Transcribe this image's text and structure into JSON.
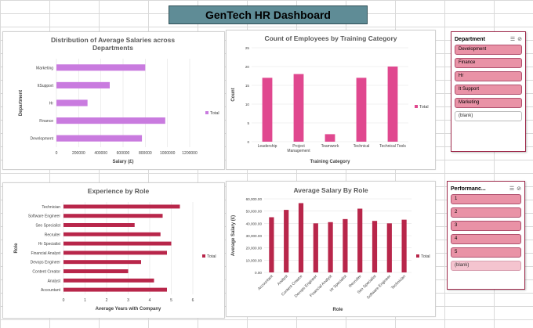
{
  "dashboard": {
    "title": "GenTech HR Dashboard"
  },
  "charts": [
    {
      "id": "dept_salary",
      "title": "Distribution of Average Salaries across Departments",
      "color": "#c97bdf"
    },
    {
      "id": "training",
      "title": "Count of Employees by Training Category",
      "color": "#e0488f"
    },
    {
      "id": "experience",
      "title": "Experience by Role",
      "color": "#b8264a"
    },
    {
      "id": "role_salary",
      "title": "Average Salary By Role",
      "color": "#b8264a"
    }
  ],
  "chart_data": [
    {
      "type": "bar",
      "orientation": "horizontal",
      "title": "Distribution of Average Salaries across Departments",
      "xlabel": "Salary (£)",
      "ylabel": "Department",
      "categories": [
        "Marketing",
        "ItSupport",
        "Hr",
        "Finance",
        "Development"
      ],
      "series": [
        {
          "name": "Total",
          "values": [
            800000,
            480000,
            280000,
            980000,
            770000
          ]
        }
      ],
      "xlim": [
        0,
        1200000
      ],
      "xticks": [
        "0",
        "200000",
        "400000",
        "600000",
        "800000",
        "1000000",
        "1200000"
      ],
      "legend": "right",
      "grid": true
    },
    {
      "type": "bar",
      "title": "Count of Employees by Training Category",
      "xlabel": "Training Category",
      "ylabel": "Count",
      "categories": [
        "Leadership",
        "Project Management",
        "Teamwork",
        "Technical",
        "Technical Tools"
      ],
      "series": [
        {
          "name": "Total",
          "values": [
            17,
            18,
            2,
            17,
            20
          ]
        }
      ],
      "ylim": [
        0,
        25
      ],
      "yticks": [
        "0",
        "5",
        "10",
        "15",
        "20",
        "25"
      ],
      "legend": "right",
      "grid": true
    },
    {
      "type": "bar",
      "orientation": "horizontal",
      "title": "Experience by Role",
      "xlabel": "Average Years with Company",
      "ylabel": "Role",
      "categories": [
        "Technician",
        "Software Engineer",
        "Seo Specialist",
        "Recruiter",
        "Hr Specialist",
        "Financial Analyst",
        "Devops Engineer",
        "Content Creator",
        "Analyst",
        "Accountant"
      ],
      "series": [
        {
          "name": "Total",
          "values": [
            5.4,
            4.6,
            3.3,
            4.5,
            5.0,
            4.8,
            3.6,
            3.0,
            4.2,
            4.8
          ]
        }
      ],
      "xlim": [
        0,
        6
      ],
      "xticks": [
        "0",
        "1",
        "2",
        "3",
        "4",
        "5",
        "6"
      ],
      "legend": "right",
      "grid": true
    },
    {
      "type": "bar",
      "title": "Average Salary By Role",
      "xlabel": "Role",
      "ylabel": "Average Salary (£)",
      "categories": [
        "Accountant",
        "Analyst",
        "Content Creator",
        "Devops Engineer",
        "Financial Analyst",
        "Hr Specialist",
        "Recruiter",
        "Seo Specialist",
        "Software Engineer",
        "Technician"
      ],
      "series": [
        {
          "name": "Total",
          "values": [
            45000,
            51000,
            56500,
            40000,
            41000,
            43500,
            52000,
            42000,
            40000,
            43000
          ]
        }
      ],
      "ylim": [
        0,
        60000
      ],
      "yticks": [
        "0.00",
        "10,000.00",
        "20,000.00",
        "30,000.00",
        "40,000.00",
        "50,000.00",
        "60,000.00"
      ],
      "legend": "right",
      "grid": true
    }
  ],
  "slicers": {
    "department": {
      "title": "Department",
      "items": [
        "Development",
        "Finance",
        "Hr",
        "It Support",
        "Marketing",
        "(blank)"
      ]
    },
    "performance": {
      "title": "Performanc...",
      "items": [
        "1",
        "2",
        "3",
        "4",
        "5",
        "(blank)"
      ]
    }
  },
  "icons": {
    "multiselect": "multi-select-icon",
    "clear_filter": "clear-filter-icon"
  }
}
